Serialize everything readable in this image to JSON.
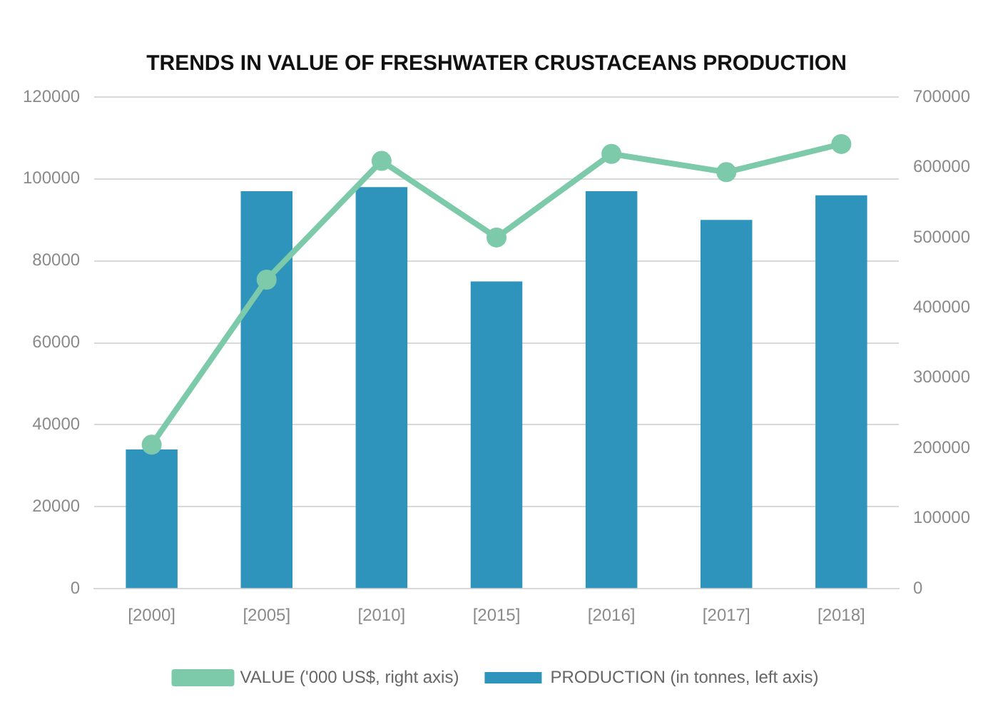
{
  "chart_data": {
    "type": "bar",
    "title": "TRENDS IN VALUE OF FRESHWATER CRUSTACEANS PRODUCTION",
    "categories": [
      "[2000]",
      "[2005]",
      "[2010]",
      "[2015]",
      "[2016]",
      "[2017]",
      "[2018]"
    ],
    "series": [
      {
        "name": "PRODUCTION (in tonnes, left axis)",
        "color": "#2e94bb",
        "values": [
          34000,
          97000,
          98000,
          75000,
          97000,
          90000,
          96000
        ]
      },
      {
        "name": "VALUE ('000 US$, right axis)",
        "type": "line",
        "axis": "y2",
        "color": "#7ccaa9",
        "values": [
          205000,
          440000,
          609000,
          500000,
          619000,
          593000,
          633000
        ]
      }
    ],
    "ylim": [
      0,
      120000
    ],
    "yticks": [
      0,
      20000,
      40000,
      60000,
      80000,
      100000,
      120000
    ],
    "y2lim": [
      0,
      700000
    ],
    "y2ticks": [
      0,
      100000,
      200000,
      300000,
      400000,
      500000,
      600000,
      700000
    ],
    "grid": "y",
    "legend": "bottom",
    "marker": "circle",
    "line_style": "solid"
  }
}
